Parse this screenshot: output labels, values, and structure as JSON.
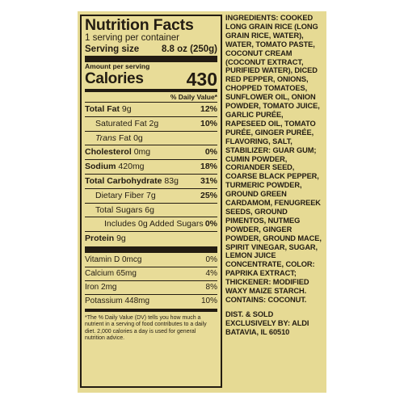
{
  "nutrition": {
    "title": "Nutrition Facts",
    "servings": "1 serving per container",
    "serving_size_label": "Serving size",
    "serving_size_value": "8.8 oz (250g)",
    "amount_per_serving": "Amount per serving",
    "calories_label": "Calories",
    "calories_value": "430",
    "dv_header": "% Daily Value*",
    "rows": {
      "total_fat": {
        "label": "Total Fat",
        "amount": "9g",
        "pct": "12%"
      },
      "sat_fat": {
        "label": "Saturated Fat",
        "amount": "2g",
        "pct": "10%"
      },
      "trans_fat": {
        "label": "Trans",
        "rest": "Fat 0g"
      },
      "cholesterol": {
        "label": "Cholesterol",
        "amount": "0mg",
        "pct": "0%"
      },
      "sodium": {
        "label": "Sodium",
        "amount": "420mg",
        "pct": "18%"
      },
      "total_carb": {
        "label": "Total Carbohydrate",
        "amount": "83g",
        "pct": "31%"
      },
      "fiber": {
        "label": "Dietary Fiber",
        "amount": "7g",
        "pct": "25%"
      },
      "sugars": {
        "label": "Total Sugars",
        "amount": "6g"
      },
      "added_sugars": {
        "text": "Includes 0g Added Sugars",
        "pct": "0%"
      },
      "protein": {
        "label": "Protein",
        "amount": "9g"
      },
      "vitamin_d": {
        "label": "Vitamin D 0mcg",
        "pct": "0%"
      },
      "calcium": {
        "label": "Calcium 65mg",
        "pct": "4%"
      },
      "iron": {
        "label": "Iron 2mg",
        "pct": "8%"
      },
      "potassium": {
        "label": "Potassium 448mg",
        "pct": "10%"
      }
    },
    "footnote": "*The % Daily Value (DV) tells you how much a nutrient in a serving of food contributes to a daily diet. 2,000 calories a day is used for general nutrition advice."
  },
  "ingredients": {
    "text": "INGREDIENTS: COOKED LONG GRAIN RICE (LONG GRAIN RICE, WATER), WATER, TOMATO PASTE, COCONUT CREAM (COCONUT EXTRACT, PURIFIED WATER), DICED RED PEPPER, ONIONS, CHOPPED TOMATOES, SUNFLOWER OIL, ONION POWDER, TOMATO JUICE, GARLIC PURÉE, RAPESEED OIL, TOMATO PURÉE, GINGER PURÉE, FLAVORING, SALT, STABILIZER: GUAR GUM; CUMIN POWDER, CORIANDER SEED, COARSE BLACK PEPPER, TURMERIC POWDER, GROUND GREEN CARDAMOM, FENUGREEK SEEDS, GROUND PIMENTOS, NUTMEG POWDER, GINGER POWDER, GROUND MACE, SPIRIT VINEGAR, SUGAR, LEMON JUICE CONCENTRATE, COLOR: PAPRIKA EXTRACT; THICKENER: MODIFIED WAXY MAIZE STARCH.",
    "contains": "CONTAINS: COCONUT.",
    "distributor": "DIST. & SOLD EXCLUSIVELY BY: ALDI BATAVIA, IL 60510"
  }
}
